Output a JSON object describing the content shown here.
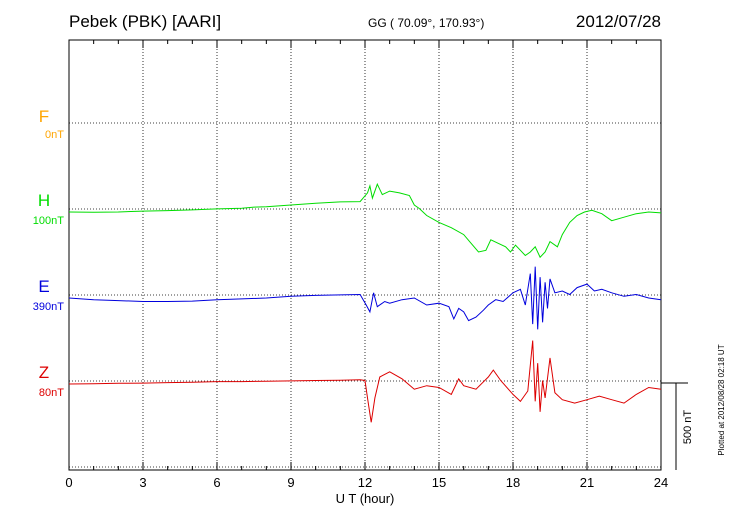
{
  "header": {
    "station": "Pebek (PBK)  [AARI]",
    "coords": "GG ( 70.09°, 170.93°)",
    "date": "2012/07/28"
  },
  "footer_note": "Plotted at 2012/08/28 02:18 UT",
  "scale_bar_label": "500 nT",
  "chart_data": {
    "type": "line",
    "xlabel": "U T (hour)",
    "xlim": [
      0,
      24
    ],
    "xticks": [
      0,
      3,
      6,
      9,
      12,
      15,
      18,
      21,
      24
    ],
    "xtick_labels": [
      "0",
      "3",
      "6",
      "9",
      "12",
      "15",
      "18",
      "21",
      "24"
    ],
    "grid": true,
    "scale_nT": 500,
    "series": [
      {
        "name": "F",
        "baseline": "0nT",
        "color": "#ffa500",
        "base_level": 2,
        "points": []
      },
      {
        "name": "H",
        "baseline": "100nT",
        "color": "#00dd00",
        "base_level": 3,
        "points": [
          [
            0,
            0
          ],
          [
            1,
            -2
          ],
          [
            2,
            0
          ],
          [
            3,
            5
          ],
          [
            4,
            8
          ],
          [
            5,
            12
          ],
          [
            6,
            18
          ],
          [
            7,
            22
          ],
          [
            7.5,
            28
          ],
          [
            8,
            30
          ],
          [
            9,
            40
          ],
          [
            10,
            50
          ],
          [
            11,
            58
          ],
          [
            11.8,
            60
          ],
          [
            12.1,
            110
          ],
          [
            12.2,
            150
          ],
          [
            12.3,
            80
          ],
          [
            12.5,
            160
          ],
          [
            12.7,
            100
          ],
          [
            13,
            120
          ],
          [
            13.4,
            110
          ],
          [
            13.8,
            95
          ],
          [
            14,
            40
          ],
          [
            14.2,
            20
          ],
          [
            14.5,
            -20
          ],
          [
            15,
            -60
          ],
          [
            15.5,
            -90
          ],
          [
            16,
            -130
          ],
          [
            16.3,
            -180
          ],
          [
            16.6,
            -230
          ],
          [
            16.9,
            -220
          ],
          [
            17.1,
            -160
          ],
          [
            17.4,
            -180
          ],
          [
            17.7,
            -200
          ],
          [
            17.9,
            -230
          ],
          [
            18.1,
            -190
          ],
          [
            18.3,
            -220
          ],
          [
            18.5,
            -250
          ],
          [
            18.7,
            -230
          ],
          [
            18.9,
            -200
          ],
          [
            19.1,
            -260
          ],
          [
            19.3,
            -230
          ],
          [
            19.5,
            -170
          ],
          [
            19.8,
            -200
          ],
          [
            20,
            -130
          ],
          [
            20.3,
            -60
          ],
          [
            20.6,
            -20
          ],
          [
            20.9,
            0
          ],
          [
            21.2,
            10
          ],
          [
            21.6,
            -10
          ],
          [
            22,
            -50
          ],
          [
            22.5,
            -30
          ],
          [
            23,
            -10
          ],
          [
            23.5,
            0
          ],
          [
            24,
            -5
          ]
        ]
      },
      {
        "name": "E",
        "baseline": "390nT",
        "color": "#0000dd",
        "base_level": 4,
        "points": [
          [
            0,
            0
          ],
          [
            1,
            -10
          ],
          [
            2,
            -15
          ],
          [
            3,
            -20
          ],
          [
            4,
            -20
          ],
          [
            5,
            -18
          ],
          [
            6,
            -10
          ],
          [
            7,
            -5
          ],
          [
            8,
            0
          ],
          [
            9,
            10
          ],
          [
            10,
            15
          ],
          [
            11,
            18
          ],
          [
            11.8,
            20
          ],
          [
            12.05,
            -40
          ],
          [
            12.2,
            -80
          ],
          [
            12.35,
            30
          ],
          [
            12.5,
            -50
          ],
          [
            12.8,
            -20
          ],
          [
            13,
            -30
          ],
          [
            13.5,
            -10
          ],
          [
            14,
            0
          ],
          [
            14.5,
            -40
          ],
          [
            15,
            -30
          ],
          [
            15.4,
            -50
          ],
          [
            15.6,
            -120
          ],
          [
            15.8,
            -60
          ],
          [
            16,
            -80
          ],
          [
            16.2,
            -130
          ],
          [
            16.5,
            -110
          ],
          [
            16.8,
            -70
          ],
          [
            17,
            -40
          ],
          [
            17.3,
            -10
          ],
          [
            17.6,
            -20
          ],
          [
            18,
            30
          ],
          [
            18.3,
            50
          ],
          [
            18.5,
            -40
          ],
          [
            18.7,
            140
          ],
          [
            18.8,
            -150
          ],
          [
            18.9,
            180
          ],
          [
            19,
            -180
          ],
          [
            19.1,
            120
          ],
          [
            19.2,
            -140
          ],
          [
            19.3,
            90
          ],
          [
            19.4,
            -60
          ],
          [
            19.5,
            110
          ],
          [
            19.7,
            30
          ],
          [
            20,
            40
          ],
          [
            20.3,
            20
          ],
          [
            20.6,
            60
          ],
          [
            21,
            80
          ],
          [
            21.3,
            40
          ],
          [
            21.6,
            50
          ],
          [
            22,
            30
          ],
          [
            22.5,
            10
          ],
          [
            23,
            20
          ],
          [
            23.5,
            0
          ],
          [
            24,
            -10
          ]
        ]
      },
      {
        "name": "Z",
        "baseline": "80nT",
        "color": "#dd0000",
        "base_level": 5,
        "points": [
          [
            0,
            0
          ],
          [
            1,
            2
          ],
          [
            2,
            4
          ],
          [
            3,
            5
          ],
          [
            4,
            8
          ],
          [
            5,
            10
          ],
          [
            6,
            14
          ],
          [
            7,
            14
          ],
          [
            8,
            16
          ],
          [
            9,
            18
          ],
          [
            10,
            20
          ],
          [
            11,
            22
          ],
          [
            11.8,
            24
          ],
          [
            12,
            20
          ],
          [
            12.1,
            -80
          ],
          [
            12.25,
            -220
          ],
          [
            12.4,
            -80
          ],
          [
            12.6,
            40
          ],
          [
            13,
            70
          ],
          [
            13.5,
            30
          ],
          [
            14,
            -30
          ],
          [
            14.5,
            -10
          ],
          [
            15,
            -20
          ],
          [
            15.5,
            -60
          ],
          [
            15.8,
            30
          ],
          [
            16,
            -10
          ],
          [
            16.5,
            -30
          ],
          [
            17,
            40
          ],
          [
            17.2,
            80
          ],
          [
            17.5,
            20
          ],
          [
            18,
            -60
          ],
          [
            18.3,
            -100
          ],
          [
            18.6,
            -40
          ],
          [
            18.8,
            250
          ],
          [
            18.9,
            -100
          ],
          [
            19,
            120
          ],
          [
            19.1,
            -160
          ],
          [
            19.2,
            20
          ],
          [
            19.3,
            -80
          ],
          [
            19.5,
            150
          ],
          [
            19.7,
            -50
          ],
          [
            20,
            -90
          ],
          [
            20.5,
            -110
          ],
          [
            21,
            -90
          ],
          [
            21.5,
            -70
          ],
          [
            22,
            -90
          ],
          [
            22.5,
            -110
          ],
          [
            23,
            -60
          ],
          [
            23.5,
            -20
          ],
          [
            24,
            -30
          ]
        ]
      }
    ]
  }
}
